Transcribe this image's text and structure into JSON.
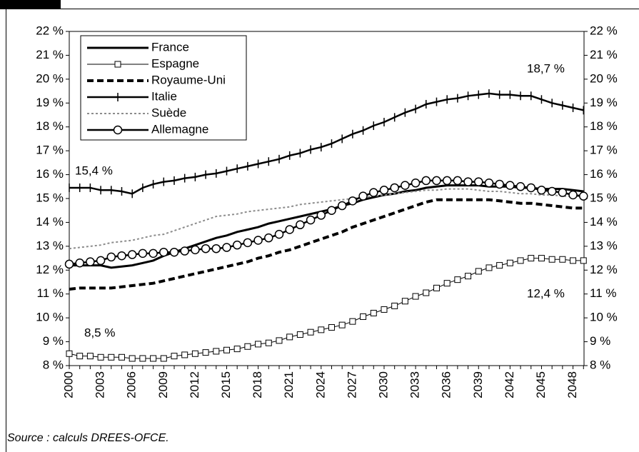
{
  "chart_data": {
    "type": "line",
    "categories": [
      "2000",
      null,
      null,
      "2003",
      null,
      null,
      "2006",
      null,
      null,
      "2009",
      null,
      null,
      "2012",
      null,
      null,
      "2015",
      null,
      null,
      "2018",
      null,
      null,
      "2021",
      null,
      null,
      "2024",
      null,
      null,
      "2027",
      null,
      null,
      "2030",
      null,
      null,
      "2033",
      null,
      null,
      "2036",
      null,
      null,
      "2039",
      null,
      null,
      "2042",
      null,
      null,
      "2045",
      null,
      null,
      "2048",
      null
    ],
    "ylim": [
      8,
      22
    ],
    "yticks": [
      {
        "value": 8,
        "label": "8 %"
      },
      {
        "value": 9,
        "label": "9 %"
      },
      {
        "value": 10,
        "label": "10 %"
      },
      {
        "value": 11,
        "label": "11 %"
      },
      {
        "value": 12,
        "label": "12 %"
      },
      {
        "value": 13,
        "label": "13 %"
      },
      {
        "value": 14,
        "label": "14 %"
      },
      {
        "value": 15,
        "label": "15 %"
      },
      {
        "value": 16,
        "label": "16 %"
      },
      {
        "value": 17,
        "label": "17 %"
      },
      {
        "value": 18,
        "label": "18 %"
      },
      {
        "value": 19,
        "label": "19 %"
      },
      {
        "value": 20,
        "label": "20 %"
      },
      {
        "value": 21,
        "label": "21 %"
      },
      {
        "value": 22,
        "label": "22 %"
      }
    ],
    "y2lim": [
      8,
      22
    ],
    "y2ticks": [
      {
        "value": 8,
        "label": "8 %"
      },
      {
        "value": 9,
        "label": "9 %"
      },
      {
        "value": 10,
        "label": "10 %"
      },
      {
        "value": 11,
        "label": "11 %"
      },
      {
        "value": 12,
        "label": "12 %"
      },
      {
        "value": 13,
        "label": "13 %"
      },
      {
        "value": 14,
        "label": "14 %"
      },
      {
        "value": 15,
        "label": "15 %"
      },
      {
        "value": 16,
        "label": "16 %"
      },
      {
        "value": 17,
        "label": "17 %"
      },
      {
        "value": 18,
        "label": "18 %"
      },
      {
        "value": 19,
        "label": "19 %"
      },
      {
        "value": 20,
        "label": "20 %"
      },
      {
        "value": 21,
        "label": "21 %"
      },
      {
        "value": 22,
        "label": "22 %"
      }
    ],
    "grid": false,
    "legend": "upper left",
    "series": [
      {
        "name": "France",
        "color": "#000000",
        "width": 3,
        "dash": "solid",
        "marker": "none",
        "values": [
          12.2,
          12.2,
          12.2,
          12.2,
          12.1,
          12.15,
          12.2,
          12.3,
          12.4,
          12.6,
          12.75,
          12.9,
          13.05,
          13.2,
          13.35,
          13.45,
          13.6,
          13.7,
          13.8,
          13.95,
          14.05,
          14.15,
          14.25,
          14.35,
          14.45,
          14.55,
          14.7,
          14.8,
          14.95,
          15.05,
          15.15,
          15.2,
          15.3,
          15.35,
          15.45,
          15.5,
          15.55,
          15.55,
          15.55,
          15.55,
          15.5,
          15.5,
          15.5,
          15.45,
          15.45,
          15.4,
          15.4,
          15.4,
          15.35,
          15.3
        ]
      },
      {
        "name": "Espagne",
        "color": "#000000",
        "width": 1,
        "dash": "solid",
        "marker": "square",
        "values": [
          8.5,
          8.4,
          8.4,
          8.35,
          8.35,
          8.35,
          8.3,
          8.3,
          8.3,
          8.3,
          8.4,
          8.45,
          8.5,
          8.55,
          8.6,
          8.65,
          8.7,
          8.8,
          8.9,
          8.95,
          9.05,
          9.2,
          9.3,
          9.4,
          9.5,
          9.6,
          9.7,
          9.85,
          10.05,
          10.2,
          10.35,
          10.5,
          10.7,
          10.9,
          11.05,
          11.25,
          11.45,
          11.6,
          11.75,
          11.95,
          12.1,
          12.2,
          12.3,
          12.4,
          12.5,
          12.5,
          12.45,
          12.45,
          12.4,
          12.4
        ]
      },
      {
        "name": "Royaume-Uni",
        "color": "#000000",
        "width": 4,
        "dash": "dashed",
        "marker": "none",
        "values": [
          11.2,
          11.25,
          11.25,
          11.25,
          11.25,
          11.3,
          11.35,
          11.4,
          11.45,
          11.55,
          11.65,
          11.75,
          11.85,
          11.95,
          12.05,
          12.15,
          12.25,
          12.35,
          12.5,
          12.6,
          12.75,
          12.85,
          13.0,
          13.15,
          13.3,
          13.45,
          13.6,
          13.8,
          13.95,
          14.1,
          14.25,
          14.4,
          14.55,
          14.7,
          14.85,
          14.95,
          14.95,
          14.95,
          14.95,
          14.95,
          14.95,
          14.9,
          14.85,
          14.8,
          14.8,
          14.75,
          14.7,
          14.65,
          14.6,
          14.6
        ]
      },
      {
        "name": "Italie",
        "color": "#000000",
        "width": 2.5,
        "dash": "solid",
        "marker": "plus",
        "values": [
          15.45,
          15.45,
          15.45,
          15.35,
          15.35,
          15.3,
          15.2,
          15.45,
          15.6,
          15.7,
          15.75,
          15.85,
          15.9,
          16.0,
          16.05,
          16.15,
          16.25,
          16.35,
          16.45,
          16.55,
          16.65,
          16.8,
          16.9,
          17.05,
          17.15,
          17.3,
          17.5,
          17.7,
          17.85,
          18.05,
          18.2,
          18.4,
          18.6,
          18.75,
          18.95,
          19.05,
          19.15,
          19.2,
          19.3,
          19.35,
          19.4,
          19.35,
          19.35,
          19.3,
          19.3,
          19.15,
          19.0,
          18.9,
          18.8,
          18.7
        ]
      },
      {
        "name": "Suède",
        "color": "#8c8c8c",
        "width": 2,
        "dash": "dotted",
        "marker": "none",
        "values": [
          12.9,
          12.95,
          13.0,
          13.05,
          13.15,
          13.2,
          13.25,
          13.35,
          13.45,
          13.5,
          13.65,
          13.8,
          13.95,
          14.1,
          14.25,
          14.3,
          14.35,
          14.45,
          14.5,
          14.55,
          14.6,
          14.65,
          14.75,
          14.8,
          14.85,
          14.9,
          14.95,
          15.0,
          15.05,
          15.1,
          15.15,
          15.2,
          15.25,
          15.3,
          15.35,
          15.35,
          15.4,
          15.4,
          15.4,
          15.35,
          15.3,
          15.3,
          15.25,
          15.2,
          15.2,
          15.15,
          15.15,
          15.1,
          15.1,
          15.1
        ]
      },
      {
        "name": "Allemagne",
        "color": "#000000",
        "width": 2.5,
        "dash": "solid",
        "marker": "circle",
        "values": [
          12.25,
          12.3,
          12.35,
          12.4,
          12.55,
          12.6,
          12.65,
          12.7,
          12.7,
          12.75,
          12.75,
          12.8,
          12.85,
          12.9,
          12.9,
          12.95,
          13.05,
          13.15,
          13.25,
          13.35,
          13.5,
          13.7,
          13.9,
          14.1,
          14.3,
          14.5,
          14.7,
          14.9,
          15.1,
          15.25,
          15.35,
          15.45,
          15.55,
          15.65,
          15.75,
          15.75,
          15.75,
          15.75,
          15.7,
          15.7,
          15.65,
          15.6,
          15.55,
          15.5,
          15.45,
          15.35,
          15.3,
          15.25,
          15.15,
          15.1
        ]
      }
    ],
    "annotations": [
      "15,4 %",
      "8,5 %",
      "18,7 %",
      "12,4 %"
    ],
    "source": "Source : calculs DREES-OFCE."
  }
}
